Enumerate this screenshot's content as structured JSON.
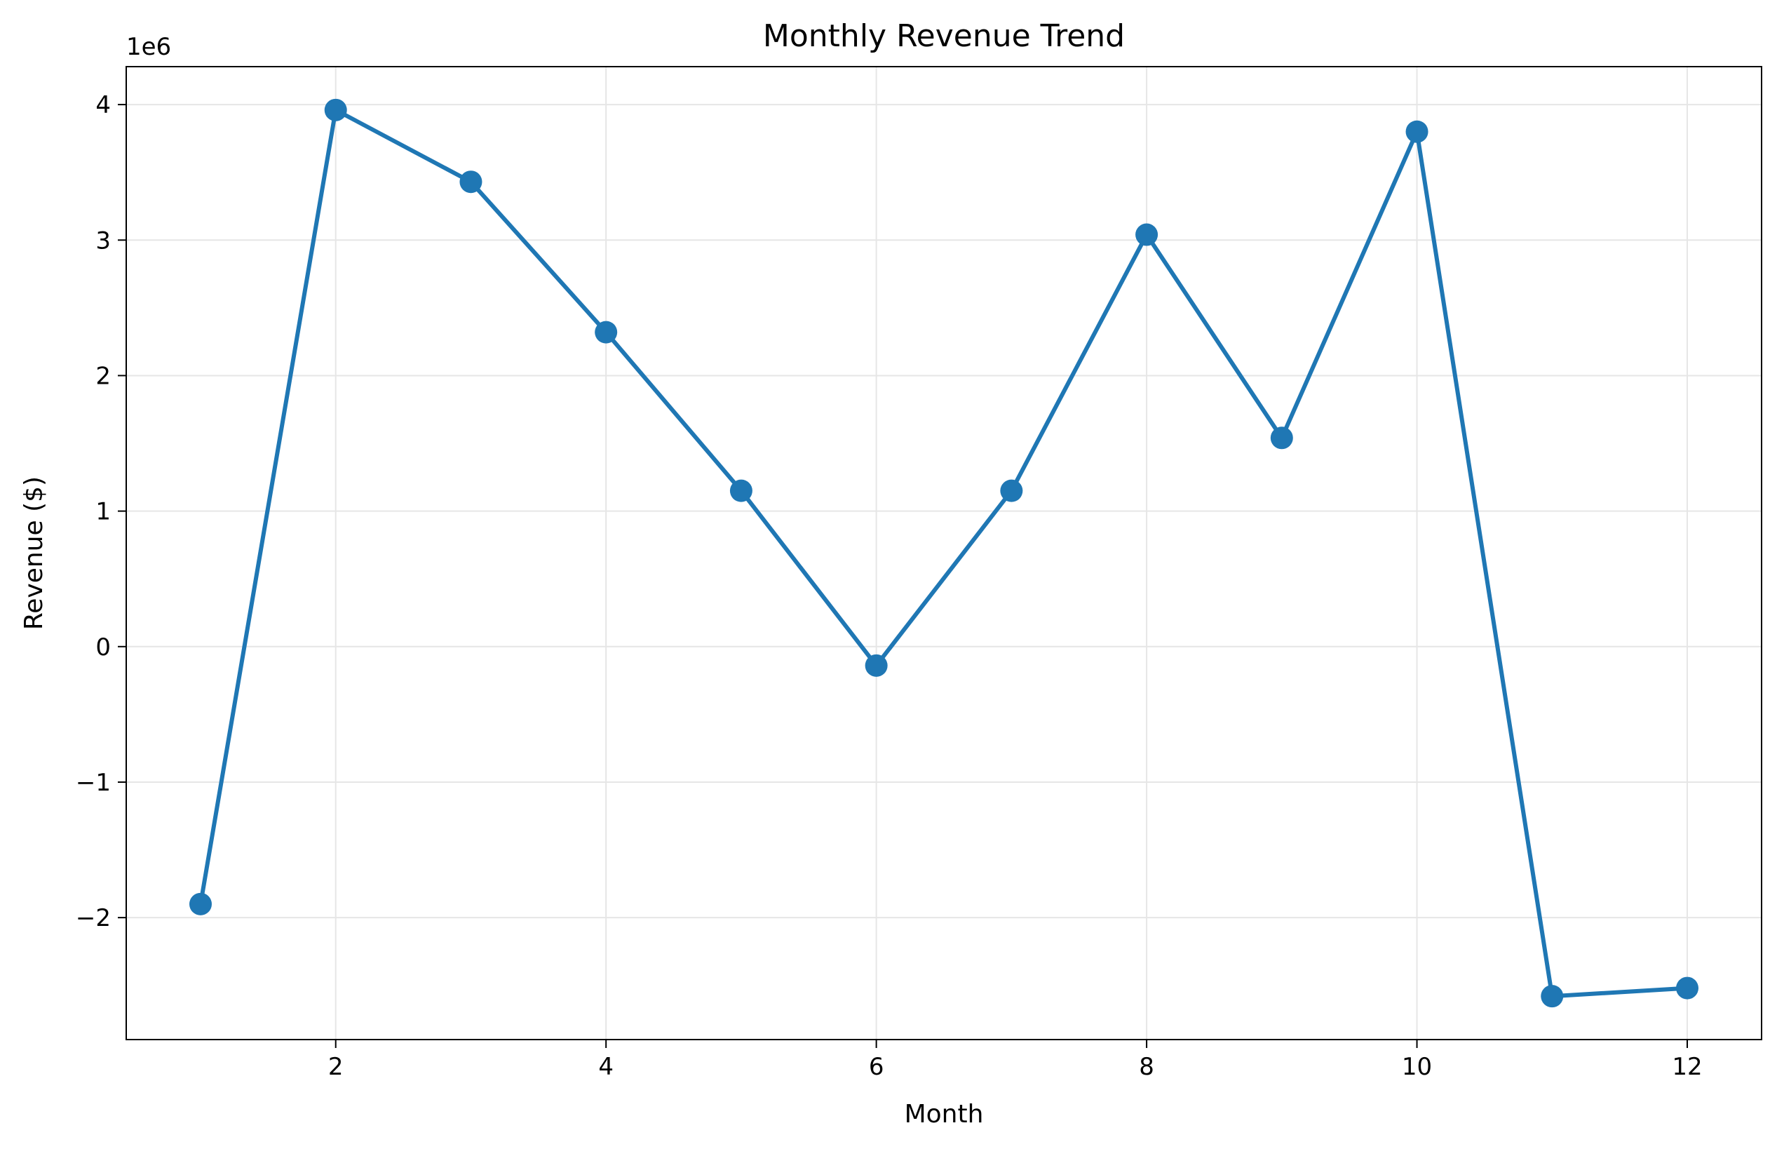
{
  "chart_data": {
    "type": "line",
    "title": "Monthly Revenue Trend",
    "xlabel": "Month",
    "ylabel": "Revenue ($)",
    "y_offset_label": "1e6",
    "x": [
      1,
      2,
      3,
      4,
      5,
      6,
      7,
      8,
      9,
      10,
      11,
      12
    ],
    "series": [
      {
        "values": [
          -1900000,
          3960000,
          3430000,
          2320000,
          1150000,
          -140000,
          1150000,
          3040000,
          1540000,
          3800000,
          -2580000,
          -2520000
        ],
        "color": "#1f77b4"
      }
    ],
    "xlim": [
      0.45,
      12.55
    ],
    "ylim": [
      -2900000,
      4280000
    ],
    "xticks": [
      2,
      4,
      6,
      8,
      10,
      12
    ],
    "xtick_labels": [
      "2",
      "4",
      "6",
      "8",
      "10",
      "12"
    ],
    "yticks": [
      -2000000,
      -1000000,
      0,
      1000000,
      2000000,
      3000000,
      4000000
    ],
    "ytick_labels": [
      "−2",
      "−1",
      "0",
      "1",
      "2",
      "3",
      "4"
    ],
    "grid": true,
    "legend": false
  }
}
